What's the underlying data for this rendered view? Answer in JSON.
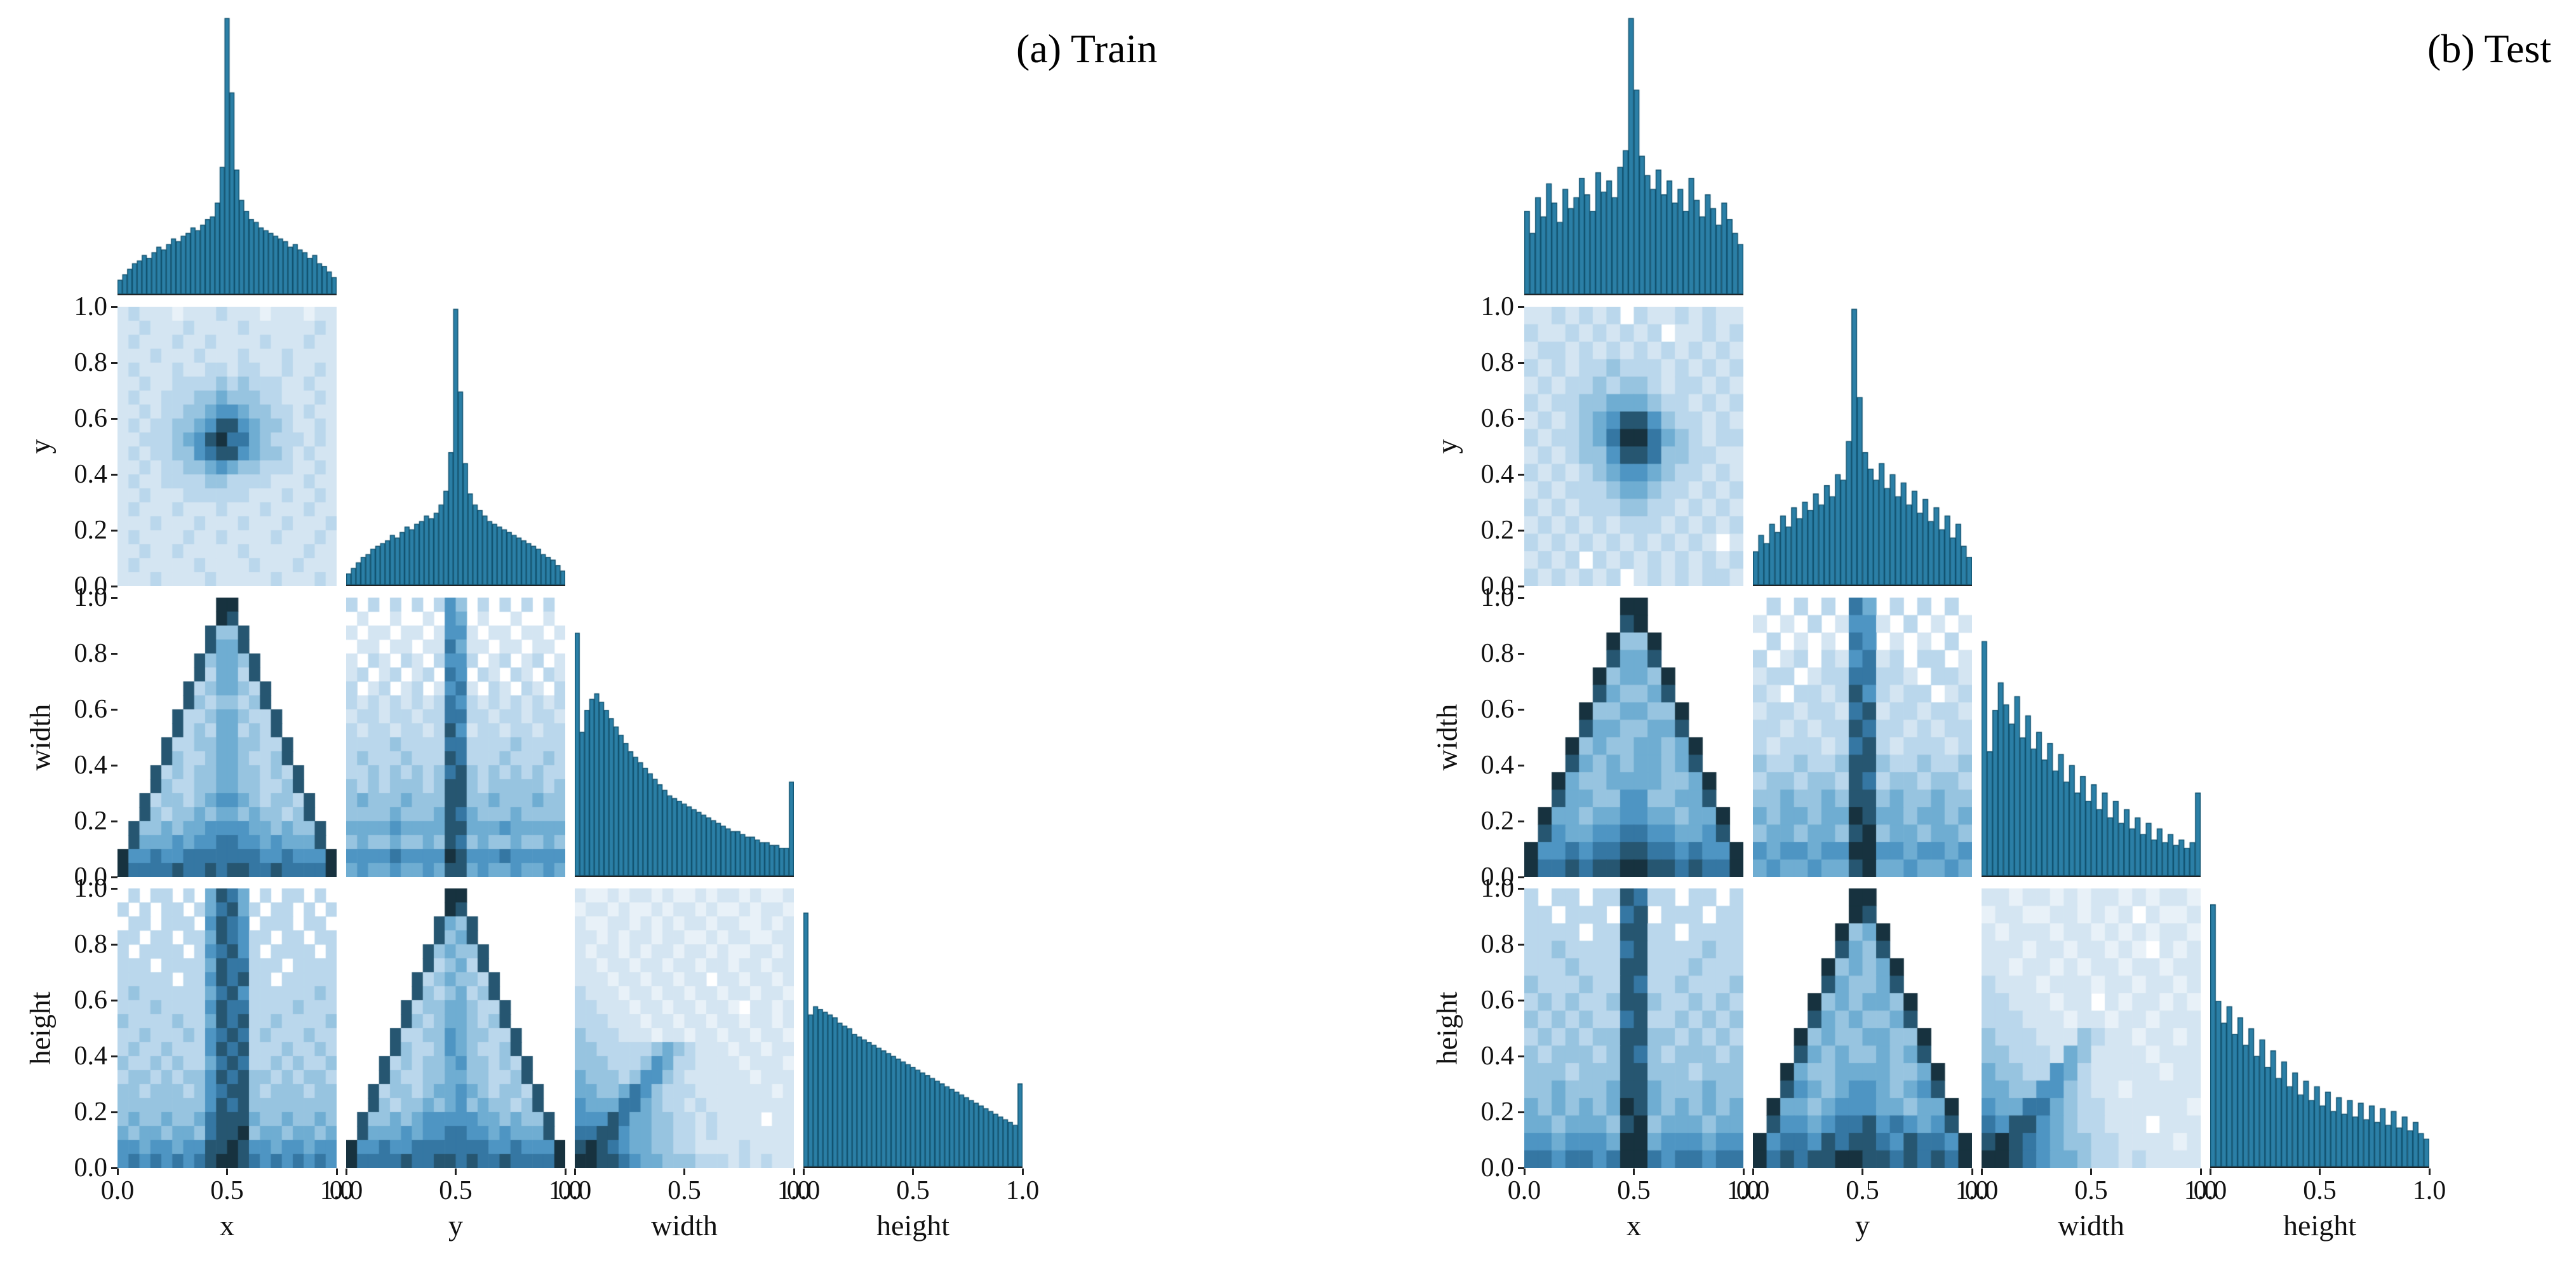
{
  "style": {
    "background": "#ffffff",
    "bar_fill": "#2b7fa6",
    "bar_edge": "#10516e",
    "text_color": "#111111",
    "heat_ramp": [
      "#ffffff",
      "#e8f1f8",
      "#d4e5f2",
      "#bad7ec",
      "#97c4e0",
      "#6fadd2",
      "#4e95c3",
      "#3577a3",
      "#265671",
      "#17323f"
    ]
  },
  "chart_data": [
    {
      "id": "train",
      "title": "(a) Train",
      "type": "pairplot",
      "variables": [
        "x",
        "y",
        "width",
        "height"
      ],
      "axis_range": [
        0,
        1
      ],
      "x_ticks": [
        "0.0",
        "0.5",
        "1.0"
      ],
      "y_ticks": [
        "1.0",
        "0.8",
        "0.6",
        "0.4",
        "0.2",
        "0.0"
      ],
      "histograms": {
        "x": [
          5,
          7,
          9,
          11,
          12,
          14,
          13,
          15,
          17,
          16,
          18,
          20,
          19,
          21,
          22,
          24,
          23,
          25,
          27,
          28,
          33,
          46,
          100,
          73,
          45,
          34,
          30,
          27,
          26,
          24,
          23,
          22,
          21,
          20,
          19,
          17,
          18,
          16,
          15,
          13,
          14,
          11,
          10,
          8,
          6
        ],
        "y": [
          4,
          6,
          8,
          10,
          11,
          13,
          14,
          15,
          16,
          18,
          17,
          19,
          21,
          20,
          22,
          23,
          25,
          24,
          26,
          29,
          34,
          48,
          100,
          70,
          44,
          33,
          29,
          27,
          25,
          23,
          22,
          21,
          20,
          19,
          18,
          17,
          16,
          15,
          14,
          13,
          11,
          10,
          9,
          7,
          5
        ],
        "width": [
          88,
          52,
          60,
          64,
          66,
          63,
          60,
          57,
          54,
          51,
          48,
          45,
          43,
          41,
          39,
          37,
          35,
          33,
          31,
          29,
          28,
          27,
          26,
          25,
          24,
          23,
          22,
          21,
          20,
          19,
          18,
          17,
          16,
          16,
          15,
          14,
          14,
          13,
          12,
          12,
          11,
          11,
          10,
          10,
          34
        ],
        "height": [
          92,
          55,
          58,
          57,
          56,
          55,
          54,
          52,
          51,
          50,
          48,
          47,
          46,
          45,
          44,
          43,
          42,
          41,
          40,
          39,
          38,
          37,
          36,
          35,
          34,
          33,
          32,
          31,
          30,
          29,
          28,
          27,
          26,
          25,
          24,
          23,
          22,
          21,
          20,
          19,
          18,
          17,
          16,
          15,
          30
        ]
      },
      "heatmaps": {
        "y_vs_x": {
          "rows": [
            "23222122232221222122",
            "22322232222322222232",
            "23222322322223222322",
            "22232223222322232222",
            "23222322332332232232",
            "22322333343433322322",
            "23223334454443322232",
            "22323344566544332322",
            "23233445688654432232",
            "22333456897754333232",
            "23233446788654432322",
            "22323344565443332232",
            "23223333443333222322",
            "22322233333322232232",
            "23222322232223222322",
            "22232223222322232223",
            "23222232232222322232",
            "22322322222322222322",
            "23222223222232223222",
            "22232222322222322232"
          ]
        },
        "width_vs_x": {
          "rows": [
            "00000000099000000000",
            "00000000098000000000",
            "00000000844800000000",
            "00000000855800000000",
            "00000008455480000000",
            "00000008355380000000",
            "00000083455438000000",
            "00000084344348000000",
            "00000833455433800000",
            "00000834355343800000",
            "00008334455443380000",
            "00008433455433480000",
            "00083434455443438000",
            "00084334455443348000",
            "00834434566543443800",
            "00843445455454434800",
            "08445455666655454480",
            "08555656677665655580",
            "96676677777776676669",
            "97777877878877877779"
          ]
        },
        "width_vs_y": {
          "rows": [
            "30303030364030303030",
            "02002002065020020020",
            "20220220266202202202",
            "02202202275220220220",
            "20320320366302302302",
            "23023023076032032032",
            "30230230267203203203",
            "32323232376323232323",
            "23323323377332332332",
            "32332332386233233233",
            "33334333377333343333",
            "34333433387333433343",
            "33434343478434343433",
            "43434443488434444434",
            "45444544488445444544",
            "44445444587544454444",
            "55556555588555655555",
            "45445445487454454454",
            "66667666698666766666",
            "56556556588565565565"
          ]
        },
        "height_vs_x": {
          "rows": [
            "03033030587503033030",
            "30303303578530330303",
            "03303330687603330330",
            "33033033587633033033",
            "30333303678630333303",
            "33303333587733303333",
            "33333033687833033333",
            "34333333578633333343",
            "33343333687733334333",
            "43333433587833433334",
            "33433343678734333433",
            "34334333687833343343",
            "43343433578733434334",
            "34434344687844343443",
            "44344434678843444344",
            "44444444687844444444",
            "45445445788854454454",
            "54554554788945545545",
            "66566566889866566566",
            "67676767899876767676"
          ]
        },
        "height_vs_y": {
          "rows": [
            "00000000099000000000",
            "00000000098000000000",
            "00000000854800000000",
            "00000000845800000000",
            "00000008454480000000",
            "00000008345380000000",
            "00000083454438000000",
            "00000084345348000000",
            "00000834455433800000",
            "00000843455434800000",
            "00008334465443380000",
            "00008433465433480000",
            "00083434456443438000",
            "00084334455443348000",
            "00834434556543443800",
            "00843445456454434800",
            "08445456666655454480",
            "08555656677665655580",
            "96676677777776676669",
            "97777877887877877779"
          ]
        },
        "height_vs_width": {
          "rows": [
            "21121221211212212112",
            "12212112122121121221",
            "21122121212212211212",
            "22121221221121221122",
            "21221212212212112212",
            "22122122122122122122",
            "22212212212202212212",
            "32221221221221221221",
            "33222122122122102212",
            "33322212212212212212",
            "43332221221221221221",
            "44333334543222122122",
            "44433346533222212221",
            "54443466432222221222",
            "55445764333222222212",
            "65557754332322222222",
            "66687554433232222022",
            "77886554433232222222",
            "89876554433222232222",
            "99887655444333232322"
          ]
        }
      }
    },
    {
      "id": "test",
      "title": "(b) Test",
      "type": "pairplot",
      "variables": [
        "x",
        "y",
        "width",
        "height"
      ],
      "axis_range": [
        0,
        1
      ],
      "x_ticks": [
        "0.0",
        "0.5",
        "1.0"
      ],
      "y_ticks": [
        "1.0",
        "0.8",
        "0.6",
        "0.4",
        "0.2",
        "0.0"
      ],
      "histograms": {
        "x": [
          30,
          22,
          35,
          28,
          40,
          33,
          26,
          38,
          31,
          35,
          42,
          36,
          30,
          44,
          37,
          41,
          35,
          46,
          52,
          100,
          74,
          50,
          43,
          38,
          45,
          36,
          41,
          33,
          38,
          30,
          42,
          34,
          28,
          36,
          31,
          25,
          33,
          27,
          22,
          18
        ],
        "y": [
          12,
          18,
          15,
          22,
          19,
          25,
          21,
          28,
          24,
          30,
          27,
          33,
          29,
          36,
          32,
          40,
          38,
          52,
          100,
          68,
          48,
          42,
          38,
          44,
          35,
          40,
          32,
          37,
          29,
          34,
          26,
          31,
          23,
          28,
          20,
          25,
          17,
          22,
          14,
          10
        ],
        "width": [
          85,
          45,
          60,
          70,
          62,
          55,
          65,
          50,
          58,
          46,
          52,
          42,
          48,
          38,
          44,
          34,
          40,
          30,
          36,
          27,
          33,
          24,
          30,
          21,
          27,
          19,
          24,
          17,
          21,
          15,
          19,
          13,
          17,
          12,
          15,
          11,
          13,
          10,
          12,
          30
        ],
        "height": [
          95,
          60,
          52,
          58,
          48,
          54,
          44,
          50,
          40,
          46,
          36,
          42,
          32,
          38,
          29,
          34,
          26,
          31,
          24,
          29,
          22,
          27,
          20,
          25,
          19,
          24,
          18,
          23,
          17,
          22,
          16,
          21,
          15,
          20,
          14,
          18,
          13,
          16,
          12,
          10
        ]
      },
      "heatmaps": {
        "y_vs_x": {
          "rows": [
            "2232323032232322",
            "3223232323022323",
            "2332323232323232",
            "3232334333232323",
            "2323343443233232",
            "3233445554332323",
            "2323456886433232",
            "3233457997543233",
            "2323446887443322",
            "3232345665433232",
            "2323334554332323",
            "3232333443323232",
            "2323232333232323",
            "3232323232323202",
            "2323032323232323",
            "3232323023232332"
          ]
        },
        "width_vs_x": {
          "rows": [
            "0000000990000000",
            "0000000890000000",
            "0000009449000000",
            "0000008558000000",
            "0000094554900000",
            "0000085445800000",
            "0000944554490000",
            "0000855445580000",
            "0009454455459000",
            "0008545455458000",
            "0095445555445900",
            "0085544664455800",
            "0955455665545590",
            "0865566776655680",
            "9667677887767669",
            "9778788998878779"
          ]
        },
        "width_vs_y": {
          "rows": [
            "0303030750303030",
            "2020302662030202",
            "0302020760202030",
            "3023032672303302",
            "2330233773320332",
            "3203323863233023",
            "2332332782332332",
            "3323233873323233",
            "3233323783233323",
            "4334334884334334",
            "3443443873443443",
            "4454454884544544",
            "5455455985545545",
            "4554554894554554",
            "6566566996656656",
            "5655655895565565"
          ]
        },
        "height_vs_x": {
          "rows": [
            "3033033873303303",
            "3303330780333033",
            "3333033883303333",
            "3343333783333433",
            "3334333883334333",
            "4333433873343334",
            "3434334884334343",
            "4343433783343434",
            "3434344884434343",
            "4344434874344434",
            "4443444884443444",
            "4454445885444544",
            "5454545985454545",
            "5545554894555455",
            "6656665995666566",
            "7767767997677677"
          ]
        },
        "height_vs_y": {
          "rows": [
            "0000000990000000",
            "0000000980000000",
            "0000009459000000",
            "0000008548000000",
            "0000094545900000",
            "0000085445800000",
            "0000945455490000",
            "0000854544580000",
            "0009454455449000",
            "0008545445458000",
            "0095445555445900",
            "0086545665456800",
            "0955456665545590",
            "0866567786765680",
            "9677687887687769",
            "9787889988787879"
          ]
        },
        "height_vs_width": {
          "rows": [
            "2212212122121221",
            "1221122121202112",
            "2122212212121221",
            "2221221221210212",
            "2212212122122122",
            "3222122212212212",
            "3322212202122121",
            "3332221221221222",
            "4333222432212212",
            "4433325422221222",
            "5443365322222122",
            "5544664322122222",
            "6557754332222221",
            "7688654332220222",
            "8987654433222212",
            "9987655433232222"
          ]
        }
      }
    }
  ]
}
